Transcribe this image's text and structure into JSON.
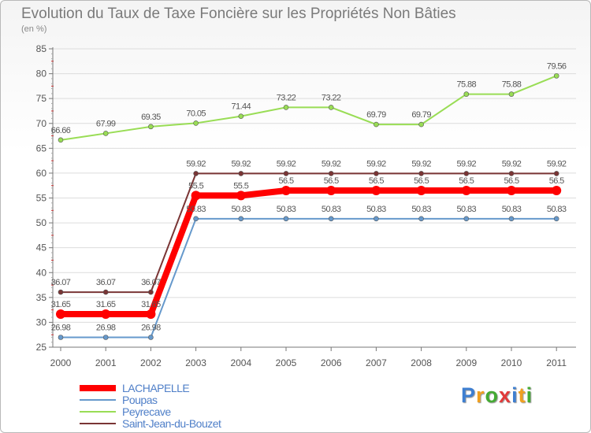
{
  "header": {
    "title": "Evolution du Taux de Taxe Foncière sur les Propriétés Non Bâties",
    "subtitle": "(en %)"
  },
  "chart_data": {
    "type": "line",
    "title": "Evolution du Taux de Taxe Foncière sur les Propriétés Non Bâties",
    "ylabel": "(en %)",
    "xlabel": "",
    "ylim": [
      25,
      85
    ],
    "yticks": [
      25,
      30,
      35,
      40,
      45,
      50,
      55,
      60,
      65,
      70,
      75,
      80,
      85
    ],
    "categories": [
      "2000",
      "2001",
      "2002",
      "2003",
      "2004",
      "2005",
      "2006",
      "2007",
      "2008",
      "2009",
      "2010",
      "2011"
    ],
    "series": [
      {
        "name": "Peyrecave",
        "color": "#99dd55",
        "values": [
          66.66,
          67.99,
          69.35,
          70.05,
          71.44,
          73.22,
          73.22,
          69.79,
          69.79,
          75.88,
          75.88,
          79.56
        ]
      },
      {
        "name": "Saint-Jean-du-Bouzet",
        "color": "#7a3535",
        "values": [
          36.07,
          36.07,
          36.07,
          59.92,
          59.92,
          59.92,
          59.92,
          59.92,
          59.92,
          59.92,
          59.92,
          59.92
        ]
      },
      {
        "name": "Poupas",
        "color": "#6699cc",
        "values": [
          26.98,
          26.98,
          26.98,
          50.83,
          50.83,
          50.83,
          50.83,
          50.83,
          50.83,
          50.83,
          50.83,
          50.83
        ]
      },
      {
        "name": "LACHAPELLE",
        "color": "#ff0000",
        "values": [
          31.65,
          31.65,
          31.65,
          55.5,
          55.5,
          56.5,
          56.5,
          56.5,
          56.5,
          56.5,
          56.5,
          56.5
        ]
      }
    ],
    "point_labels": {
      "LACHAPELLE": [
        "31.65",
        "31.65",
        "31.65",
        "55.5",
        "55.5",
        "56.5",
        "56.5",
        "56.5",
        "56.5",
        "56.5",
        "56.5",
        "56.5"
      ],
      "Poupas": [
        "26.98",
        "26.98",
        "26.98",
        "50.83",
        "50.83",
        "50.83",
        "50.83",
        "50.83",
        "50.83",
        "50.83",
        "50.83",
        "50.83"
      ],
      "Peyrecave": [
        "66.66",
        "67.99",
        "69.35",
        "70.05",
        "71.44",
        "73.22",
        "73.22",
        "69.79",
        "69.79",
        "75.88",
        "75.88",
        "79.56"
      ],
      "Saint-Jean-du-Bouzet": [
        "36.07",
        "36.07",
        "36.07",
        "59.92",
        "59.92",
        "59.92",
        "59.92",
        "59.92",
        "59.92",
        "59.92",
        "59.92",
        "59.92"
      ]
    }
  },
  "legend": {
    "items": [
      {
        "label": "LACHAPELLE",
        "color": "#ff0000"
      },
      {
        "label": "Poupas",
        "color": "#6699cc"
      },
      {
        "label": "Peyrecave",
        "color": "#99dd55"
      },
      {
        "label": "Saint-Jean-du-Bouzet",
        "color": "#7a3535"
      }
    ]
  },
  "logo": {
    "letters": [
      "P",
      "r",
      "o",
      "x",
      "i",
      "t",
      "i"
    ],
    "colors": [
      "#3e7fd1",
      "#f0a020",
      "#44aa33",
      "#e23a3a",
      "#3e7fd1",
      "#f0a020",
      "#44aa33"
    ]
  }
}
